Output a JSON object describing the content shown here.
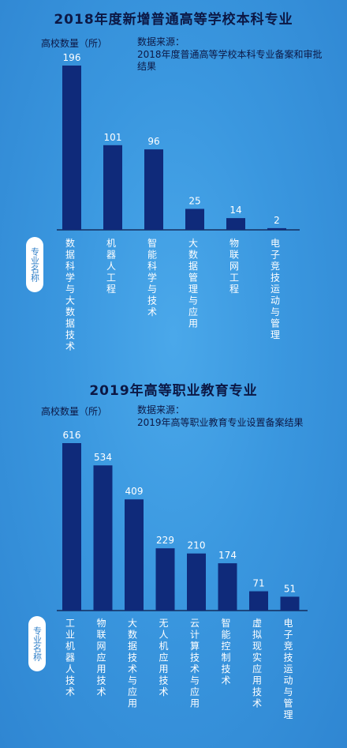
{
  "chart_data": [
    {
      "type": "bar",
      "title": "2018年度新增普通高等学校本科专业",
      "ylabel": "高校数量（所）",
      "source_label": "数据来源：",
      "source_text": "2018年度普通高等学校本科专业备案和审批结果",
      "category_axis_label": "专业名称",
      "categories": [
        "数据科学与大数据技术",
        "机器人工程",
        "智能科学与技术",
        "大数据管理与应用",
        "物联网工程",
        "电子竞技运动与管理"
      ],
      "values": [
        196,
        101,
        96,
        25,
        14,
        2
      ],
      "ylim": [
        0,
        196
      ],
      "grid": false,
      "bar_color": "#0f2a7a"
    },
    {
      "type": "bar",
      "title": "2019年高等职业教育专业",
      "ylabel": "高校数量（所）",
      "source_label": "数据来源：",
      "source_text": "2019年高等职业教育专业设置备案结果",
      "category_axis_label": "专业名称",
      "categories": [
        "工业机器人技术",
        "物联网应用技术",
        "大数据技术与应用",
        "无人机应用技术",
        "云计算技术与应用",
        "智能控制技术",
        "虚拟现实应用技术",
        "电子竞技运动与管理"
      ],
      "values": [
        616,
        534,
        409,
        229,
        210,
        174,
        71,
        51
      ],
      "ylim": [
        0,
        616
      ],
      "grid": false,
      "bar_color": "#0f2a7a"
    }
  ]
}
